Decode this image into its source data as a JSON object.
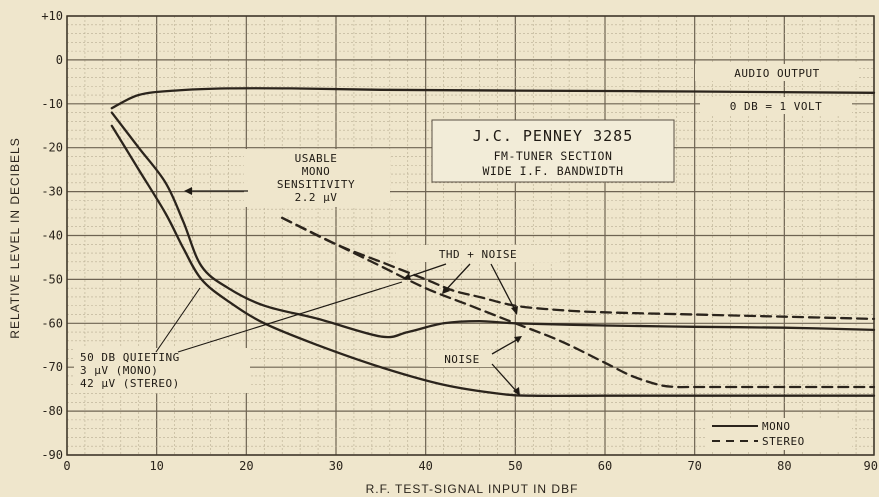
{
  "chart_data": {
    "type": "line",
    "xlabel": "R.F. TEST-SIGNAL INPUT IN DBF",
    "ylabel": "RELATIVE LEVEL IN DECIBELS",
    "xlim": [
      0,
      90
    ],
    "ylim": [
      -90,
      10
    ],
    "x_ticks": [
      "0",
      "10",
      "20",
      "30",
      "40",
      "50",
      "60",
      "70",
      "80",
      "90"
    ],
    "y_ticks": [
      "+10",
      "0",
      "-10",
      "-20",
      "-30",
      "-40",
      "-50",
      "-60",
      "-70",
      "-80",
      "-90"
    ],
    "grid": true,
    "legend": {
      "placement": "bottom-right",
      "entries": [
        {
          "label": "MONO",
          "style": "solid"
        },
        {
          "label": "STEREO",
          "style": "dashed"
        }
      ]
    },
    "title_box": {
      "line1": "J.C. PENNEY 3285",
      "line2": "FM-TUNER SECTION",
      "line3": "WIDE I.F. BANDWIDTH"
    },
    "annotations": {
      "audio_output": "AUDIO OUTPUT",
      "zero_db": "0 DB = 1 VOLT",
      "usable": [
        "USABLE",
        "MONO",
        "SENSITIVITY",
        "2.2 μV"
      ],
      "thd_noise": "THD + NOISE",
      "noise": "NOISE",
      "quieting": [
        "50 DB QUIETING",
        "3 μV   (MONO)",
        "42 μV (STEREO)"
      ]
    },
    "series": [
      {
        "style": "solid",
        "x": [
          5,
          8,
          12,
          18,
          25,
          35,
          50,
          70,
          90
        ],
        "y": [
          -11,
          -8,
          -7,
          -6.5,
          -6.5,
          -6.8,
          -7,
          -7.2,
          -7.5
        ]
      },
      {
        "style": "solid",
        "x": [
          5,
          8,
          11,
          13,
          15,
          18,
          22,
          28,
          35,
          38,
          42,
          46,
          50,
          60,
          70,
          80,
          90
        ],
        "y": [
          -12,
          -20,
          -28,
          -37,
          -47,
          -52,
          -56,
          -59,
          -63,
          -62,
          -60,
          -59.5,
          -60,
          -60.5,
          -60.8,
          -61,
          -61.5
        ]
      },
      {
        "style": "solid",
        "x": [
          5,
          8,
          11,
          13,
          15,
          18,
          22,
          28,
          35,
          42,
          48,
          52,
          60,
          70,
          80,
          90
        ],
        "y": [
          -15,
          -25,
          -35,
          -43,
          -50,
          -55,
          -60,
          -65,
          -70,
          -74,
          -76,
          -76.5,
          -76.5,
          -76.5,
          -76.5,
          -76.5
        ]
      },
      {
        "style": "dashed",
        "x": [
          24,
          30,
          35,
          40,
          43,
          46,
          50,
          55,
          60,
          70,
          80,
          90
        ],
        "y": [
          -36,
          -42,
          -46,
          -50,
          -52.5,
          -54,
          -56,
          -57,
          -57.5,
          -58,
          -58.5,
          -59
        ]
      },
      {
        "style": "dashed",
        "x": [
          24,
          30,
          35,
          40,
          45,
          50,
          55,
          60,
          63,
          66,
          68,
          70,
          80,
          90
        ],
        "y": [
          -36,
          -42,
          -47,
          -52,
          -56,
          -60,
          -64,
          -69,
          -72,
          -74,
          -74.5,
          -74.5,
          -74.5,
          -74.5
        ]
      }
    ]
  }
}
